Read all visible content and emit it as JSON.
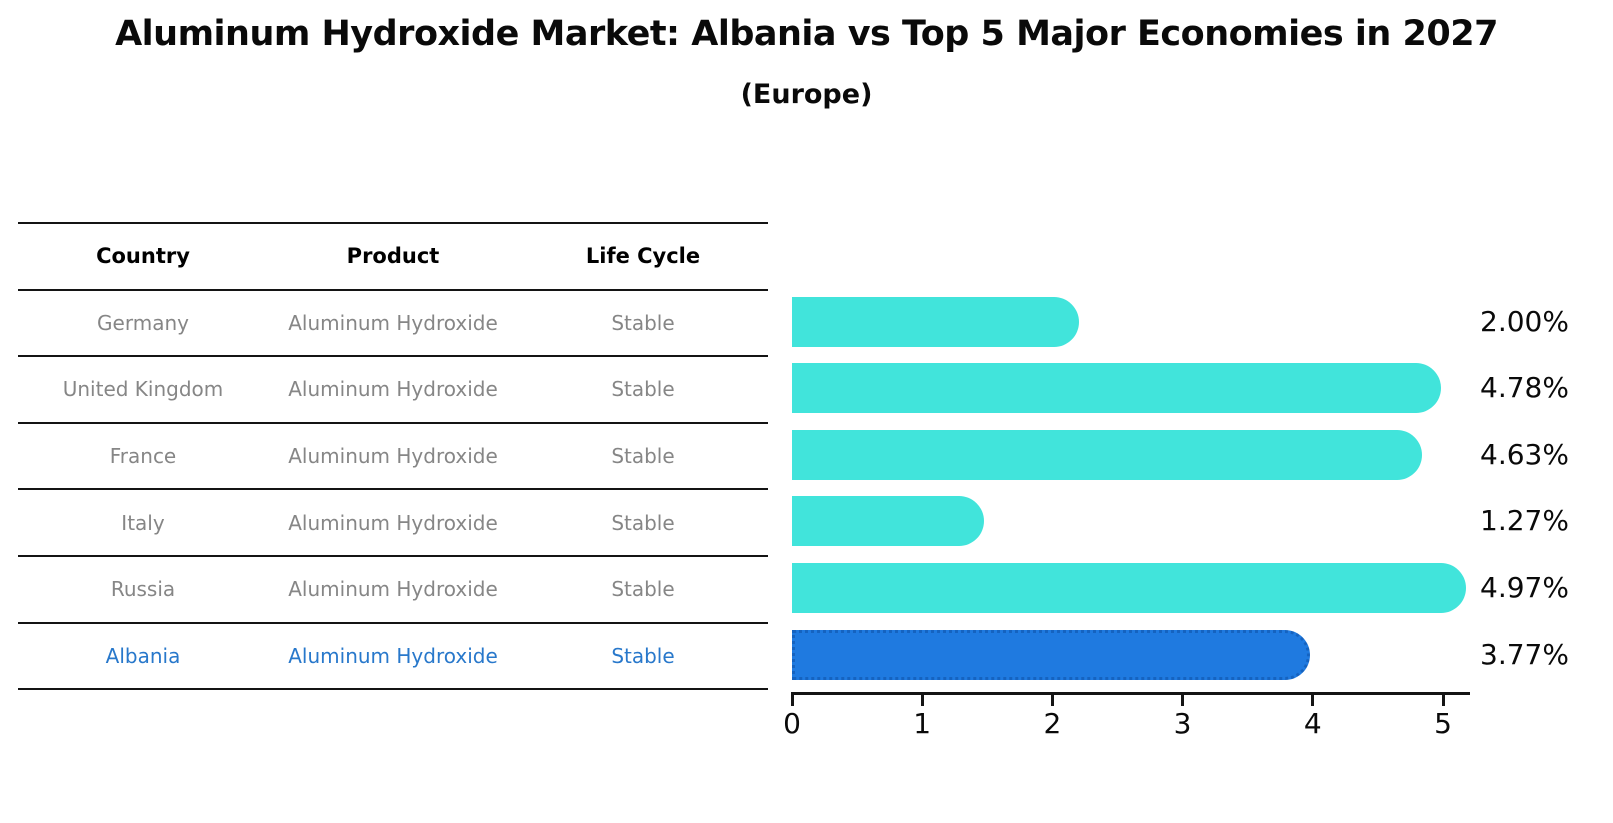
{
  "title": "Aluminum Hydroxide Market: Albania vs Top 5 Major Economies in 2027",
  "subtitle": "(Europe)",
  "table": {
    "headers": [
      "Country",
      "Product",
      "Life Cycle"
    ],
    "rows": [
      {
        "country": "Germany",
        "product": "Aluminum Hydroxide",
        "life_cycle": "Stable",
        "highlighted": false
      },
      {
        "country": "United Kingdom",
        "product": "Aluminum Hydroxide",
        "life_cycle": "Stable",
        "highlighted": false
      },
      {
        "country": "France",
        "product": "Aluminum Hydroxide",
        "life_cycle": "Stable",
        "highlighted": false
      },
      {
        "country": "Italy",
        "product": "Aluminum Hydroxide",
        "life_cycle": "Stable",
        "highlighted": false
      },
      {
        "country": "Russia",
        "product": "Aluminum Hydroxide",
        "life_cycle": "Stable",
        "highlighted": false
      },
      {
        "country": "Albania",
        "product": "Aluminum Hydroxide",
        "life_cycle": "Stable",
        "highlighted": true
      }
    ]
  },
  "chart_data": {
    "type": "bar",
    "orientation": "horizontal",
    "categories": [
      "Germany",
      "United Kingdom",
      "France",
      "Italy",
      "Russia",
      "Albania"
    ],
    "values": [
      2.0,
      4.78,
      4.63,
      1.27,
      4.97,
      3.77
    ],
    "value_labels": [
      "2.00%",
      "4.78%",
      "4.63%",
      "1.27%",
      "4.97%",
      "3.77%"
    ],
    "x_ticks": [
      "0",
      "1",
      "2",
      "3",
      "4",
      "5"
    ],
    "xlim": [
      0,
      5.2
    ],
    "grid": false,
    "legend": false,
    "highlight_category": "Albania",
    "colors": {
      "bar": "#41e4db",
      "highlight_bar": "#1f7ae0",
      "highlight_bar_edge": "#1563c0",
      "table_text": "#868686",
      "table_header_text": "#000000",
      "highlight_text": "#2878cb",
      "axis": "#141414"
    }
  }
}
